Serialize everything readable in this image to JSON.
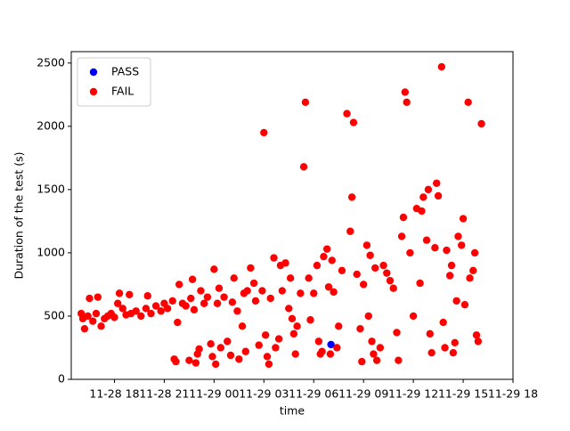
{
  "chart_data": {
    "type": "scatter",
    "xlabel": "time",
    "ylabel": "Duration of the test (s)",
    "xlim": [
      15.4,
      42.0
    ],
    "ylim": [
      0,
      2590
    ],
    "xticks": [
      {
        "value": 18,
        "label": "11-28 18"
      },
      {
        "value": 21,
        "label": "11-28 21"
      },
      {
        "value": 24,
        "label": "11-29 00"
      },
      {
        "value": 27,
        "label": "11-29 03"
      },
      {
        "value": 30,
        "label": "11-29 06"
      },
      {
        "value": 33,
        "label": "11-29 09"
      },
      {
        "value": 36,
        "label": "11-29 12"
      },
      {
        "value": 39,
        "label": "11-29 15"
      },
      {
        "value": 42,
        "label": "11-29 18"
      }
    ],
    "yticks": [
      0,
      500,
      1000,
      1500,
      2000,
      2500
    ],
    "legend": "upper left",
    "series": [
      {
        "name": "PASS",
        "color": "#0000ff",
        "x": [
          31.04
        ],
        "values": [
          275
        ]
      },
      {
        "name": "FAIL",
        "color": "#ff0000",
        "x": [
          16.0,
          16.1,
          16.2,
          16.4,
          16.5,
          16.7,
          16.9,
          17.0,
          17.2,
          17.4,
          17.6,
          17.8,
          18.0,
          18.2,
          18.3,
          18.5,
          18.7,
          18.9,
          19.0,
          19.3,
          19.6,
          19.9,
          20.0,
          20.2,
          20.5,
          20.8,
          21.0,
          21.2,
          21.5,
          21.6,
          21.7,
          21.8,
          21.9,
          22.1,
          22.3,
          22.5,
          22.6,
          22.7,
          22.8,
          22.9,
          23.0,
          23.1,
          23.2,
          23.4,
          23.6,
          23.8,
          23.9,
          24.0,
          24.1,
          24.2,
          24.3,
          24.4,
          24.6,
          24.8,
          25.0,
          25.1,
          25.2,
          25.4,
          25.5,
          25.7,
          25.8,
          25.9,
          26.0,
          26.2,
          26.4,
          26.5,
          26.7,
          26.9,
          27.0,
          27.1,
          27.2,
          27.3,
          27.4,
          27.6,
          27.7,
          27.9,
          28.0,
          28.1,
          28.3,
          28.5,
          28.6,
          28.7,
          28.8,
          28.9,
          29.0,
          29.2,
          29.4,
          29.5,
          29.7,
          29.8,
          30.0,
          30.2,
          30.3,
          30.4,
          30.5,
          30.6,
          30.8,
          30.9,
          31.0,
          31.1,
          31.2,
          31.4,
          31.5,
          31.7,
          32.0,
          32.2,
          32.3,
          32.4,
          32.6,
          32.8,
          32.9,
          33.0,
          33.2,
          33.3,
          33.4,
          33.5,
          33.6,
          33.7,
          33.8,
          34.0,
          34.2,
          34.4,
          34.6,
          34.8,
          35.0,
          35.1,
          35.3,
          35.4,
          35.5,
          35.6,
          35.8,
          36.0,
          36.2,
          36.4,
          36.5,
          36.6,
          36.8,
          36.9,
          37.0,
          37.1,
          37.3,
          37.4,
          37.5,
          37.7,
          37.8,
          37.9,
          38.0,
          38.2,
          38.3,
          38.4,
          38.5,
          38.6,
          38.7,
          38.9,
          39.0,
          39.1,
          39.3,
          39.4,
          39.6,
          39.7,
          39.8,
          39.9,
          40.1
        ],
        "values": [
          520,
          480,
          400,
          500,
          640,
          460,
          520,
          650,
          420,
          480,
          500,
          520,
          490,
          600,
          680,
          560,
          510,
          670,
          520,
          540,
          500,
          560,
          660,
          520,
          580,
          540,
          600,
          560,
          620,
          160,
          140,
          450,
          750,
          600,
          580,
          150,
          640,
          790,
          550,
          130,
          200,
          240,
          700,
          600,
          650,
          280,
          180,
          870,
          120,
          600,
          720,
          250,
          650,
          300,
          190,
          610,
          800,
          540,
          160,
          420,
          680,
          220,
          700,
          880,
          760,
          620,
          270,
          700,
          1950,
          350,
          180,
          120,
          640,
          960,
          250,
          320,
          900,
          700,
          920,
          560,
          800,
          480,
          360,
          200,
          420,
          680,
          1680,
          2190,
          800,
          470,
          680,
          900,
          300,
          200,
          220,
          970,
          1030,
          730,
          200,
          940,
          690,
          250,
          420,
          860,
          2100,
          1170,
          1440,
          2030,
          830,
          400,
          140,
          750,
          1060,
          500,
          980,
          300,
          200,
          880,
          150,
          250,
          900,
          840,
          780,
          720,
          370,
          150,
          1130,
          1280,
          2270,
          2190,
          1000,
          500,
          1350,
          760,
          1330,
          1440,
          1100,
          1500,
          360,
          210,
          1040,
          1550,
          1450,
          2470,
          450,
          250,
          1020,
          820,
          900,
          210,
          290,
          620,
          1130,
          1060,
          1270,
          590,
          2190,
          800,
          860,
          1000,
          350,
          300,
          2020
        ]
      }
    ]
  }
}
